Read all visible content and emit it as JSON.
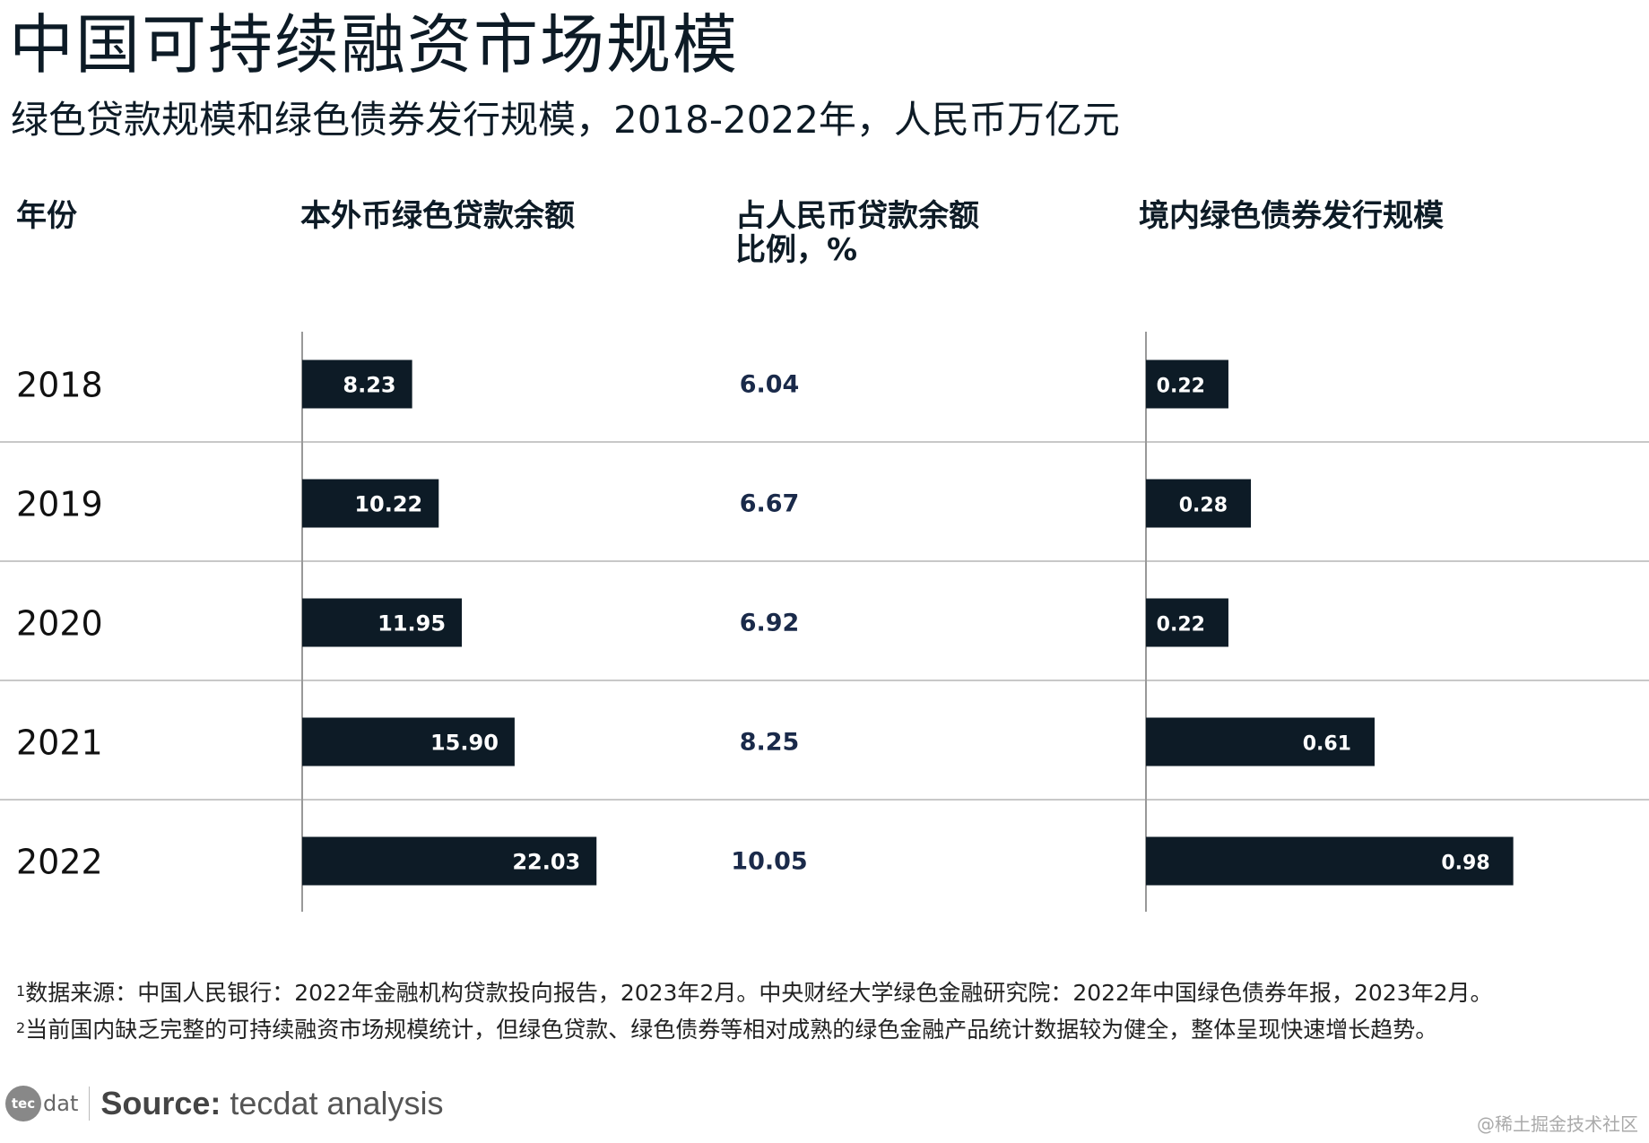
{
  "title": "中国可持续融资市场规模",
  "subtitle": "绿色贷款规模和绿色债券发行规模，2018-2022年，人民币万亿元",
  "headers": {
    "year": "年份",
    "loans": "本外币绿色贷款余额",
    "ratio_line1": "占人民币贷款余额",
    "ratio_line2": "比例，%",
    "bonds": "境内绿色债券发行规模"
  },
  "chart_data": {
    "type": "bar",
    "orientation": "horizontal",
    "categories": [
      "2018",
      "2019",
      "2020",
      "2021",
      "2022"
    ],
    "series": [
      {
        "name": "本外币绿色贷款余额",
        "values": [
          8.23,
          10.22,
          11.95,
          15.9,
          22.03
        ],
        "labels": [
          "8.23",
          "10.22",
          "11.95",
          "15.90",
          "22.03"
        ]
      },
      {
        "name": "占人民币贷款余额比例，%",
        "values": [
          6.04,
          6.67,
          6.92,
          8.25,
          10.05
        ],
        "labels": [
          "6.04",
          "6.67",
          "6.92",
          "8.25",
          "10.05"
        ]
      },
      {
        "name": "境内绿色债券发行规模",
        "values": [
          0.22,
          0.28,
          0.22,
          0.61,
          0.98
        ],
        "labels": [
          "0.22",
          "0.28",
          "0.22",
          "0.61",
          "0.98"
        ]
      }
    ],
    "colors": {
      "bar": "#0d1b26",
      "bar_label": "#ffffff",
      "ratio_text": "#1a2a4a",
      "divider": "#c8c8c8",
      "axis": "#999999"
    }
  },
  "footnotes": {
    "note1_mark": "1",
    "note1": "数据来源：中国人民银行：2022年金融机构贷款投向报告，2023年2月。中央财经大学绿色金融研究院：2022年中国绿色债券年报，2023年2月。",
    "note2_mark": "2",
    "note2": "当前国内缺乏完整的可持续融资市场规模统计，但绿色贷款、绿色债券等相对成熟的绿色金融产品统计数据较为健全，整体呈现快速增长趋势。"
  },
  "source": {
    "logo_mark": "tec",
    "logo_text": "dat",
    "label": "Source:",
    "value": "tecdat analysis"
  },
  "watermark": "@稀土掘金技术社区"
}
